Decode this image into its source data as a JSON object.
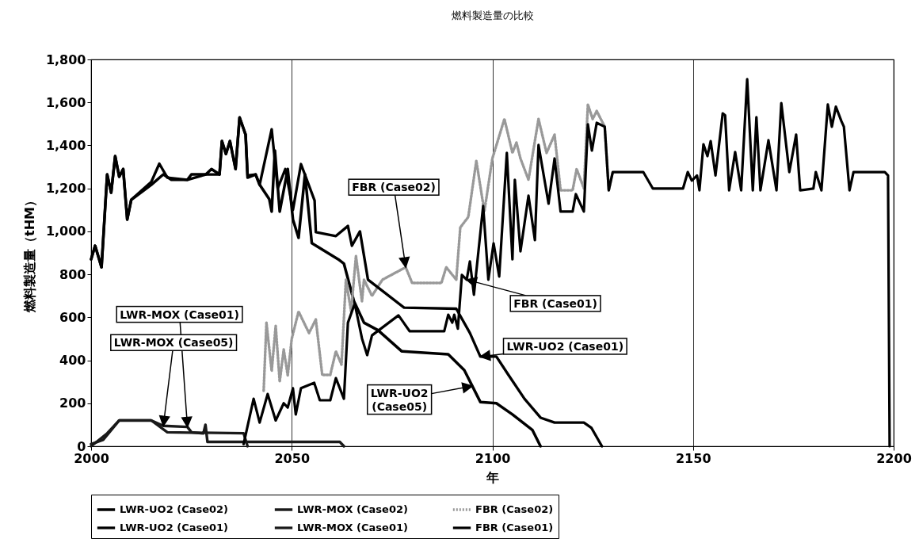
{
  "chart_data": {
    "type": "line",
    "title": "燃料製造量の比較",
    "xlabel": "年",
    "ylabel": "燃料製造量（tHM）",
    "xlim": [
      2000,
      2200
    ],
    "xticks": [
      2000,
      2050,
      2100,
      2150,
      2200
    ],
    "ylim": [
      0,
      1800
    ],
    "yticks": [
      0,
      200,
      400,
      600,
      800,
      {
        "value": 1000,
        "label": "1,000"
      },
      {
        "value": 1200,
        "label": "1,200"
      },
      {
        "value": 1400,
        "label": "1,400"
      },
      {
        "value": 1600,
        "label": "1,600"
      },
      {
        "value": 1800,
        "label": "1,800"
      }
    ],
    "grid": "x",
    "legend": "bottom",
    "series": [
      {
        "name": "LWR-UO2 (Case02)",
        "color": "#000000",
        "line_style": "solid",
        "x": [
          2000,
          2001,
          2002.6,
          2004,
          2005,
          2006,
          2007,
          2008,
          2009,
          2010,
          2015,
          2018,
          2020,
          2024,
          2025,
          2028.6,
          2030,
          2032,
          2032.6,
          2033.6,
          2034.6,
          2036,
          2037,
          2038.5,
          2039,
          2041,
          2042,
          2044.4,
          2045,
          2045.8,
          2047,
          2049,
          2050.3,
          2051.7,
          2053.3,
          2055,
          2061.6,
          2063,
          2065.5,
          2068,
          2071.5,
          2077.4,
          2089,
          2093,
          2097,
          2101,
          2105,
          2107.6,
          2110,
          2112
        ],
        "values": [
          870,
          933,
          833,
          1265,
          1180,
          1350,
          1254,
          1290,
          1055,
          1147,
          1217,
          1265,
          1240,
          1240,
          1265,
          1265,
          1290,
          1265,
          1420,
          1360,
          1420,
          1290,
          1530,
          1450,
          1250,
          1265,
          1217,
          1150,
          1092,
          1376,
          1092,
          1290,
          1055,
          970,
          1265,
          945,
          870,
          850,
          675,
          575,
          540,
          442,
          428,
          354,
          206,
          200,
          148,
          110,
          75,
          0
        ]
      },
      {
        "name": "LWR-MOX (Case02)",
        "color": "#1a1a1a",
        "line_style": "solid",
        "x": [
          2000,
          2003,
          2007,
          2015,
          2018,
          2024,
          2025,
          2028,
          2028.5,
          2029,
          2062,
          2063
        ],
        "values": [
          10,
          30,
          120,
          120,
          95,
          90,
          65,
          60,
          100,
          20,
          20,
          0
        ]
      },
      {
        "name": "FBR (Case02)",
        "color": "#999999",
        "line_style": "dotted",
        "x": [
          2043,
          2043.7,
          2045,
          2046,
          2047,
          2048,
          2049,
          2050,
          2051.7,
          2054.3,
          2056,
          2057.6,
          2059.6,
          2061,
          2062.4,
          2063.5,
          2064.8,
          2066,
          2067.5,
          2068,
          2070,
          2072.6,
          2078.4,
          2080,
          2087.3,
          2088.5,
          2091,
          2092,
          2094,
          2096,
          2098,
          2100,
          2103,
          2105,
          2106,
          2107,
          2109,
          2111.5,
          2113.5,
          2115.5,
          2117,
          2120,
          2121,
          2122.8,
          2123.8,
          2125,
          2126,
          2128,
          2129,
          2130
        ],
        "values": [
          258,
          575,
          350,
          560,
          300,
          450,
          330,
          500,
          627,
          527,
          590,
          332,
          332,
          442,
          380,
          775,
          627,
          885,
          675,
          775,
          700,
          775,
          833,
          760,
          760,
          833,
          775,
          1018,
          1067,
          1328,
          1092,
          1339,
          1523,
          1365,
          1413,
          1339,
          1240,
          1523,
          1365,
          1450,
          1191,
          1191,
          1290,
          1200,
          1590,
          1523,
          1560,
          1487,
          1191,
          1276
        ]
      },
      {
        "name": "LWR-UO2 (Case01)",
        "color": "#000000",
        "line_style": "solid",
        "x": [
          2000,
          2001,
          2002.6,
          2004,
          2005,
          2006,
          2007,
          2008,
          2009,
          2010,
          2015,
          2017,
          2019,
          2024,
          2028.6,
          2032,
          2032.6,
          2033.6,
          2034.6,
          2036,
          2037,
          2038.5,
          2039,
          2041,
          2042,
          2045,
          2046.5,
          2048.4,
          2050.3,
          2052.3,
          2055.7,
          2056,
          2061,
          2064,
          2065,
          2067,
          2069,
          2078,
          2091,
          2094.4,
          2097,
          2101,
          2104,
          2108,
          2112,
          2115.5,
          2122.8,
          2124.7,
          2127.3
        ],
        "values": [
          870,
          933,
          833,
          1265,
          1180,
          1350,
          1254,
          1290,
          1055,
          1147,
          1230,
          1315,
          1250,
          1240,
          1265,
          1265,
          1420,
          1360,
          1420,
          1290,
          1530,
          1450,
          1260,
          1265,
          1217,
          1475,
          1200,
          1290,
          1100,
          1313,
          1143,
          996,
          978,
          1025,
          933,
          1000,
          775,
          645,
          640,
          527,
          417,
          417,
          332,
          221,
          133,
          110,
          110,
          85,
          0
        ]
      },
      {
        "name": "LWR-MOX (Case01)",
        "color": "#1a1a1a",
        "line_style": "solid",
        "x": [
          2000,
          2004,
          2007,
          2015,
          2019,
          2038,
          2039
        ],
        "values": [
          0,
          60,
          120,
          120,
          65,
          60,
          0
        ]
      },
      {
        "name": "FBR (Case01)",
        "color": "#000000",
        "line_style": "solid",
        "x": [
          2038,
          2040.5,
          2042,
          2044,
          2046,
          2048,
          2049,
          2050.3,
          2051,
          2052.3,
          2055.6,
          2057,
          2059.6,
          2061,
          2063,
          2064,
          2065.7,
          2067.5,
          2068.8,
          2070,
          2076.6,
          2079.4,
          2088,
          2089,
          2090,
          2090.5,
          2091.4,
          2092.4,
          2093.6,
          2094.4,
          2095.4,
          2097.7,
          2099,
          2100.3,
          2101.7,
          2103.6,
          2105,
          2105.6,
          2107,
          2109,
          2110.6,
          2111.5,
          2114,
          2115.5,
          2117,
          2120,
          2120.8,
          2122.8,
          2123.8,
          2124.8,
          2126,
          2128,
          2129,
          2130,
          2137.6,
          2140,
          2147.5,
          2148.7,
          2149.7,
          2151,
          2151.6,
          2152.6,
          2153.6,
          2154.4,
          2155.6,
          2157.4,
          2158,
          2159,
          2160.5,
          2162,
          2163.5,
          2164.9,
          2165.8,
          2166.8,
          2168.8,
          2170.8,
          2172,
          2174,
          2175.7,
          2176.7,
          2180,
          2180.6,
          2182,
          2183.6,
          2184.6,
          2185.6,
          2187,
          2187.6,
          2189,
          2190,
          2197.8,
          2198.6,
          2199
        ],
        "values": [
          10,
          221,
          110,
          243,
          120,
          200,
          180,
          270,
          148,
          270,
          295,
          214,
          214,
          317,
          221,
          575,
          664,
          502,
          424,
          516,
          609,
          535,
          535,
          612,
          575,
          612,
          547,
          797,
          775,
          860,
          705,
          1118,
          775,
          944,
          790,
          1365,
          870,
          1240,
          907,
          1166,
          959,
          1402,
          1129,
          1339,
          1092,
          1092,
          1173,
          1092,
          1498,
          1376,
          1505,
          1487,
          1191,
          1276,
          1276,
          1199,
          1199,
          1276,
          1236,
          1260,
          1191,
          1405,
          1350,
          1420,
          1260,
          1549,
          1540,
          1191,
          1369,
          1191,
          1708,
          1191,
          1531,
          1191,
          1424,
          1191,
          1597,
          1276,
          1450,
          1191,
          1199,
          1276,
          1191,
          1590,
          1487,
          1580,
          1512,
          1487,
          1191,
          1276,
          1276,
          1260,
          0
        ]
      }
    ],
    "annotations": [
      {
        "text": "LWR-MOX (Case01)",
        "x": 2024,
        "y": 90
      },
      {
        "text": "LWR-MOX (Case05)",
        "x": 2018,
        "y": 95
      },
      {
        "text": "FBR (Case02)",
        "x": 2078.4,
        "y": 833
      },
      {
        "text": "FBR (Case01)",
        "x": 2093.6,
        "y": 775
      },
      {
        "text": "LWR-UO2 (Case01)",
        "x": 2097,
        "y": 417
      },
      {
        "text": "LWR-UO2\n(Case05)",
        "x": 2095,
        "y": 280
      }
    ]
  }
}
